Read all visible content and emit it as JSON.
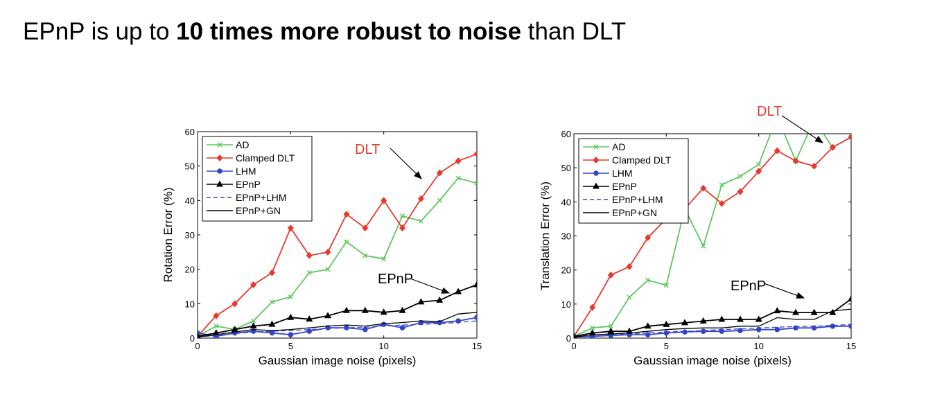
{
  "slide": {
    "title_prefix": "EPnP is up to ",
    "title_bold": "10 times more robust to noise",
    "title_suffix": " than DLT"
  },
  "chart_data": [
    {
      "type": "line",
      "title": "",
      "xlabel": "Gaussian image noise (pixels)",
      "ylabel": "Rotation Error (%)",
      "xlim": [
        0,
        15
      ],
      "ylim": [
        0,
        60
      ],
      "xticks": [
        "0",
        "5",
        "10",
        "15"
      ],
      "yticks": [
        "0",
        "10",
        "20",
        "30",
        "40",
        "50",
        "60"
      ],
      "grid": false,
      "legend_position": "top-left",
      "x": [
        0,
        1,
        2,
        3,
        4,
        5,
        6,
        7,
        8,
        9,
        10,
        11,
        12,
        13,
        14,
        15
      ],
      "series": [
        {
          "name": "AD",
          "color": "#5cc95c",
          "marker": "x",
          "dash": "solid",
          "values": [
            0.5,
            3.5,
            2.5,
            5,
            10.5,
            12,
            19,
            20,
            28,
            24,
            23,
            35.5,
            34,
            40,
            46.5,
            45
          ]
        },
        {
          "name": "Clamped DLT",
          "color": "#e8392c",
          "marker": "diamond",
          "dash": "solid",
          "values": [
            0.5,
            6.5,
            10,
            15.5,
            19,
            32,
            24,
            25,
            36,
            32,
            40,
            32,
            40.5,
            48,
            51.5,
            53.5
          ]
        },
        {
          "name": "LHM",
          "color": "#3344cc",
          "marker": "circle",
          "dash": "solid",
          "values": [
            1.5,
            0.5,
            1.5,
            2,
            1.5,
            1,
            2,
            3,
            3,
            2.5,
            4,
            3,
            4.5,
            4.5,
            5,
            6
          ]
        },
        {
          "name": "EPnP",
          "color": "#000000",
          "marker": "triangle",
          "dash": "solid",
          "values": [
            0.5,
            1.5,
            2.5,
            3.5,
            4,
            6,
            5.5,
            6.5,
            8,
            8,
            7.5,
            8,
            10.5,
            11,
            13.5,
            15.5
          ]
        },
        {
          "name": "EPnP+LHM",
          "color": "#3344cc",
          "marker": "none",
          "dash": "dashed",
          "values": [
            0.3,
            0.8,
            1.3,
            1.8,
            2,
            2.2,
            2.5,
            2.8,
            3,
            3.2,
            3.5,
            3.8,
            4,
            4.2,
            4.6,
            5
          ]
        },
        {
          "name": "EPnP+GN",
          "color": "#000000",
          "marker": "none",
          "dash": "solid",
          "values": [
            0.3,
            1,
            1.8,
            2.5,
            2.2,
            2.5,
            3,
            3.5,
            3.8,
            3.5,
            4.2,
            4.5,
            5,
            4.8,
            7,
            7.5
          ]
        }
      ],
      "annotations": [
        {
          "text": "DLT",
          "color": "#e8392c"
        },
        {
          "text": "EPnP",
          "color": "#000000"
        }
      ]
    },
    {
      "type": "line",
      "title": "",
      "xlabel": "Gaussian image noise (pixels)",
      "ylabel": "Translation Error (%)",
      "xlim": [
        0,
        15
      ],
      "ylim": [
        0,
        60
      ],
      "xticks": [
        "0",
        "5",
        "10",
        "15"
      ],
      "yticks": [
        "0",
        "10",
        "20",
        "30",
        "40",
        "50",
        "60"
      ],
      "grid": false,
      "legend_position": "top-left",
      "x": [
        0,
        1,
        2,
        3,
        4,
        5,
        6,
        7,
        8,
        9,
        10,
        11,
        12,
        13,
        14,
        15
      ],
      "series": [
        {
          "name": "AD",
          "color": "#5cc95c",
          "marker": "x",
          "dash": "solid",
          "values": [
            0.5,
            3,
            3.5,
            12,
            17,
            15.5,
            38,
            27,
            45,
            47.5,
            51,
            65,
            52,
            64,
            56,
            59
          ]
        },
        {
          "name": "Clamped DLT",
          "color": "#e8392c",
          "marker": "diamond",
          "dash": "solid",
          "values": [
            0.5,
            9,
            18.5,
            21,
            29.5,
            35,
            38,
            44,
            39.5,
            43,
            49,
            55,
            52,
            50.5,
            56,
            59
          ]
        },
        {
          "name": "LHM",
          "color": "#3344cc",
          "marker": "circle",
          "dash": "solid",
          "values": [
            0.3,
            0.5,
            0.8,
            1,
            1,
            1.5,
            1.8,
            2,
            2,
            2.2,
            2.5,
            2.5,
            3,
            3,
            3.5,
            3.5
          ]
        },
        {
          "name": "EPnP",
          "color": "#000000",
          "marker": "triangle",
          "dash": "solid",
          "values": [
            0.5,
            1.5,
            2,
            2,
            3.5,
            4,
            4.5,
            5,
            5.5,
            5.5,
            5.5,
            8,
            7.5,
            7.5,
            7.5,
            11.5
          ]
        },
        {
          "name": "EPnP+LHM",
          "color": "#3344cc",
          "marker": "none",
          "dash": "dashed",
          "values": [
            0.3,
            0.6,
            0.9,
            1.2,
            1.5,
            1.8,
            2,
            2.2,
            2.5,
            2.7,
            3,
            3.2,
            3.4,
            3.5,
            3.7,
            4
          ]
        },
        {
          "name": "EPnP+GN",
          "color": "#000000",
          "marker": "none",
          "dash": "solid",
          "values": [
            0.3,
            1,
            1.2,
            1.5,
            2,
            2.5,
            2.8,
            3,
            3,
            3.5,
            3.5,
            6,
            5.5,
            5.5,
            8,
            8.5
          ]
        }
      ],
      "annotations": [
        {
          "text": "DLT",
          "color": "#e8392c"
        },
        {
          "text": "EPnP",
          "color": "#000000"
        }
      ]
    }
  ]
}
